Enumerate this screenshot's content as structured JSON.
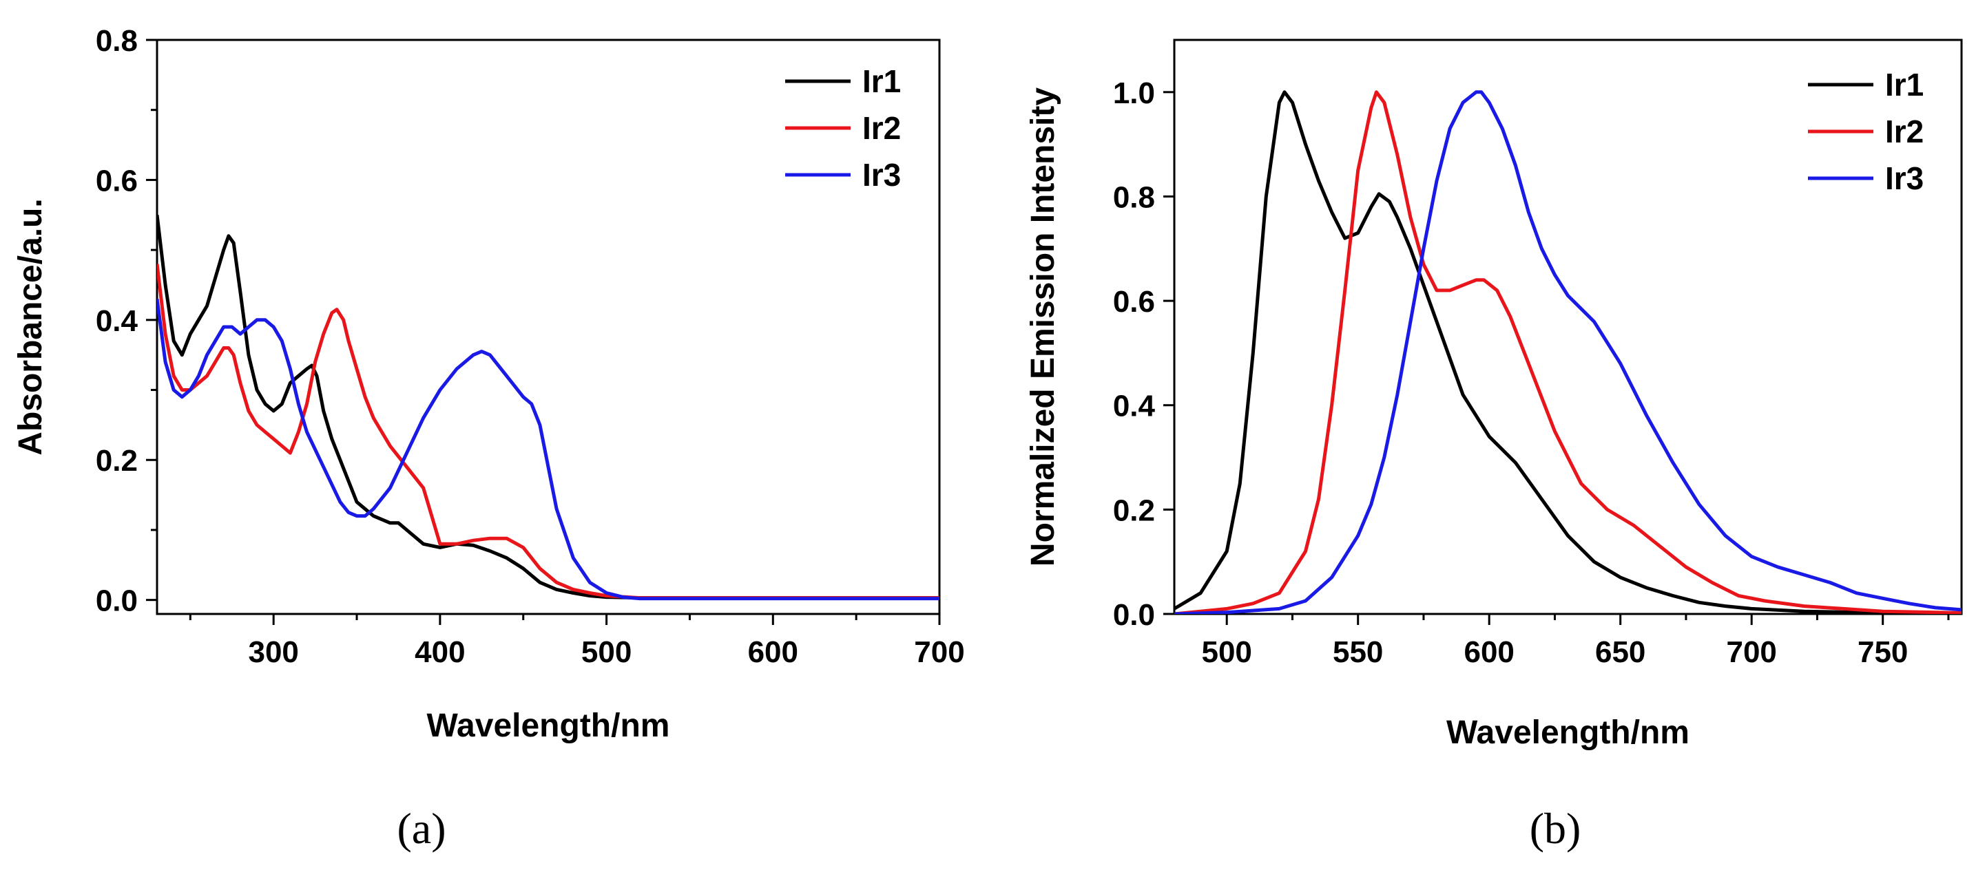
{
  "figure_labels": {
    "a": "(a)",
    "b": "(b)"
  },
  "colors": {
    "Ir1": "#000000",
    "Ir2": "#e8161b",
    "Ir3": "#1a1ae6"
  },
  "chart_data": [
    {
      "id": "a",
      "type": "line",
      "title": "",
      "xlabel": "Wavelength/nm",
      "ylabel": "Absorbance/a.u.",
      "xlim": [
        230,
        700
      ],
      "ylim": [
        -0.02,
        0.8
      ],
      "xticks": [
        300,
        400,
        500,
        600,
        700
      ],
      "xtick_labels": [
        "300",
        "400",
        "500",
        "600",
        "700"
      ],
      "yticks": [
        0.0,
        0.2,
        0.4,
        0.6,
        0.8
      ],
      "ytick_labels": [
        "0.0",
        "0.2",
        "0.4",
        "0.6",
        "0.8"
      ],
      "legend": [
        "Ir1",
        "Ir2",
        "Ir3"
      ],
      "legend_position": "top-right",
      "grid": false,
      "series": [
        {
          "name": "Ir1",
          "x": [
            230,
            235,
            240,
            245,
            250,
            255,
            260,
            265,
            270,
            273,
            276,
            280,
            285,
            290,
            295,
            300,
            305,
            310,
            315,
            320,
            323,
            326,
            330,
            335,
            340,
            345,
            350,
            360,
            370,
            375,
            380,
            390,
            400,
            410,
            420,
            430,
            440,
            450,
            460,
            470,
            480,
            490,
            500,
            520,
            550,
            600,
            650,
            700
          ],
          "y": [
            0.55,
            0.45,
            0.37,
            0.35,
            0.38,
            0.4,
            0.42,
            0.46,
            0.5,
            0.52,
            0.51,
            0.44,
            0.35,
            0.3,
            0.28,
            0.27,
            0.28,
            0.31,
            0.32,
            0.33,
            0.335,
            0.32,
            0.27,
            0.23,
            0.2,
            0.17,
            0.14,
            0.12,
            0.11,
            0.11,
            0.1,
            0.08,
            0.075,
            0.08,
            0.078,
            0.07,
            0.06,
            0.045,
            0.025,
            0.015,
            0.01,
            0.006,
            0.004,
            0.003,
            0.003,
            0.003,
            0.003,
            0.003
          ]
        },
        {
          "name": "Ir2",
          "x": [
            230,
            235,
            240,
            245,
            250,
            255,
            260,
            265,
            270,
            273,
            276,
            280,
            285,
            290,
            295,
            300,
            305,
            310,
            315,
            320,
            325,
            330,
            335,
            338,
            342,
            345,
            350,
            355,
            360,
            370,
            380,
            385,
            390,
            395,
            400,
            410,
            420,
            430,
            440,
            450,
            460,
            470,
            480,
            490,
            500,
            520,
            550,
            600,
            650,
            700
          ],
          "y": [
            0.48,
            0.38,
            0.32,
            0.3,
            0.3,
            0.31,
            0.32,
            0.34,
            0.36,
            0.36,
            0.35,
            0.31,
            0.27,
            0.25,
            0.24,
            0.23,
            0.22,
            0.21,
            0.24,
            0.28,
            0.34,
            0.38,
            0.41,
            0.415,
            0.4,
            0.37,
            0.33,
            0.29,
            0.26,
            0.22,
            0.19,
            0.175,
            0.16,
            0.12,
            0.08,
            0.08,
            0.085,
            0.088,
            0.088,
            0.075,
            0.045,
            0.025,
            0.015,
            0.01,
            0.006,
            0.003,
            0.003,
            0.003,
            0.003,
            0.003
          ]
        },
        {
          "name": "Ir3",
          "x": [
            230,
            235,
            240,
            245,
            250,
            255,
            260,
            265,
            270,
            275,
            280,
            285,
            290,
            295,
            300,
            305,
            310,
            315,
            320,
            330,
            340,
            345,
            350,
            355,
            360,
            370,
            380,
            390,
            400,
            410,
            420,
            425,
            430,
            440,
            450,
            455,
            460,
            465,
            470,
            480,
            490,
            500,
            510,
            520,
            550,
            600,
            650,
            700
          ],
          "y": [
            0.43,
            0.34,
            0.3,
            0.29,
            0.3,
            0.32,
            0.35,
            0.37,
            0.39,
            0.39,
            0.38,
            0.39,
            0.4,
            0.4,
            0.39,
            0.37,
            0.33,
            0.28,
            0.24,
            0.19,
            0.14,
            0.125,
            0.12,
            0.12,
            0.13,
            0.16,
            0.21,
            0.26,
            0.3,
            0.33,
            0.35,
            0.355,
            0.35,
            0.32,
            0.29,
            0.28,
            0.25,
            0.19,
            0.13,
            0.06,
            0.025,
            0.01,
            0.004,
            0.002,
            0.002,
            0.002,
            0.002,
            0.002
          ]
        }
      ]
    },
    {
      "id": "b",
      "type": "line",
      "title": "",
      "xlabel": "Wavelength/nm",
      "ylabel": "Normalized Emission Intensity",
      "xlim": [
        480,
        780
      ],
      "ylim": [
        0.0,
        1.1
      ],
      "xticks": [
        500,
        550,
        600,
        650,
        700,
        750
      ],
      "xtick_labels": [
        "500",
        "550",
        "600",
        "650",
        "700",
        "750"
      ],
      "yticks": [
        0.0,
        0.2,
        0.4,
        0.6,
        0.8,
        1.0
      ],
      "ytick_labels": [
        "0.0",
        "0.2",
        "0.4",
        "0.6",
        "0.8",
        "1.0"
      ],
      "legend": [
        "Ir1",
        "Ir2",
        "Ir3"
      ],
      "legend_position": "top-right",
      "grid": false,
      "series": [
        {
          "name": "Ir1",
          "x": [
            480,
            490,
            500,
            505,
            510,
            515,
            520,
            522,
            525,
            530,
            535,
            540,
            545,
            550,
            555,
            558,
            562,
            565,
            570,
            580,
            590,
            600,
            610,
            620,
            630,
            640,
            650,
            660,
            670,
            680,
            690,
            700,
            720,
            750,
            780
          ],
          "y": [
            0.01,
            0.04,
            0.12,
            0.25,
            0.5,
            0.8,
            0.98,
            1.0,
            0.98,
            0.9,
            0.83,
            0.77,
            0.72,
            0.73,
            0.78,
            0.805,
            0.79,
            0.76,
            0.7,
            0.56,
            0.42,
            0.34,
            0.29,
            0.22,
            0.15,
            0.1,
            0.07,
            0.05,
            0.035,
            0.022,
            0.015,
            0.01,
            0.005,
            0.002,
            0.001
          ]
        },
        {
          "name": "Ir2",
          "x": [
            480,
            500,
            510,
            520,
            530,
            535,
            540,
            545,
            550,
            555,
            557,
            560,
            565,
            570,
            575,
            580,
            585,
            590,
            595,
            598,
            603,
            608,
            615,
            625,
            635,
            645,
            655,
            665,
            675,
            685,
            695,
            705,
            720,
            750,
            780
          ],
          "y": [
            0.0,
            0.01,
            0.02,
            0.04,
            0.12,
            0.22,
            0.4,
            0.62,
            0.85,
            0.97,
            1.0,
            0.98,
            0.88,
            0.76,
            0.67,
            0.62,
            0.62,
            0.63,
            0.64,
            0.64,
            0.62,
            0.57,
            0.48,
            0.35,
            0.25,
            0.2,
            0.17,
            0.13,
            0.09,
            0.06,
            0.035,
            0.025,
            0.015,
            0.005,
            0.002
          ]
        },
        {
          "name": "Ir3",
          "x": [
            480,
            500,
            520,
            530,
            540,
            550,
            555,
            560,
            565,
            570,
            575,
            580,
            585,
            590,
            595,
            597,
            600,
            605,
            610,
            615,
            620,
            625,
            630,
            640,
            650,
            660,
            670,
            680,
            690,
            700,
            710,
            720,
            730,
            740,
            750,
            760,
            770,
            780
          ],
          "y": [
            0.0,
            0.003,
            0.01,
            0.025,
            0.07,
            0.15,
            0.21,
            0.3,
            0.42,
            0.56,
            0.7,
            0.83,
            0.93,
            0.98,
            1.0,
            1.0,
            0.98,
            0.93,
            0.86,
            0.77,
            0.7,
            0.65,
            0.61,
            0.56,
            0.48,
            0.38,
            0.29,
            0.21,
            0.15,
            0.11,
            0.09,
            0.075,
            0.06,
            0.04,
            0.03,
            0.02,
            0.012,
            0.008
          ]
        }
      ]
    }
  ]
}
